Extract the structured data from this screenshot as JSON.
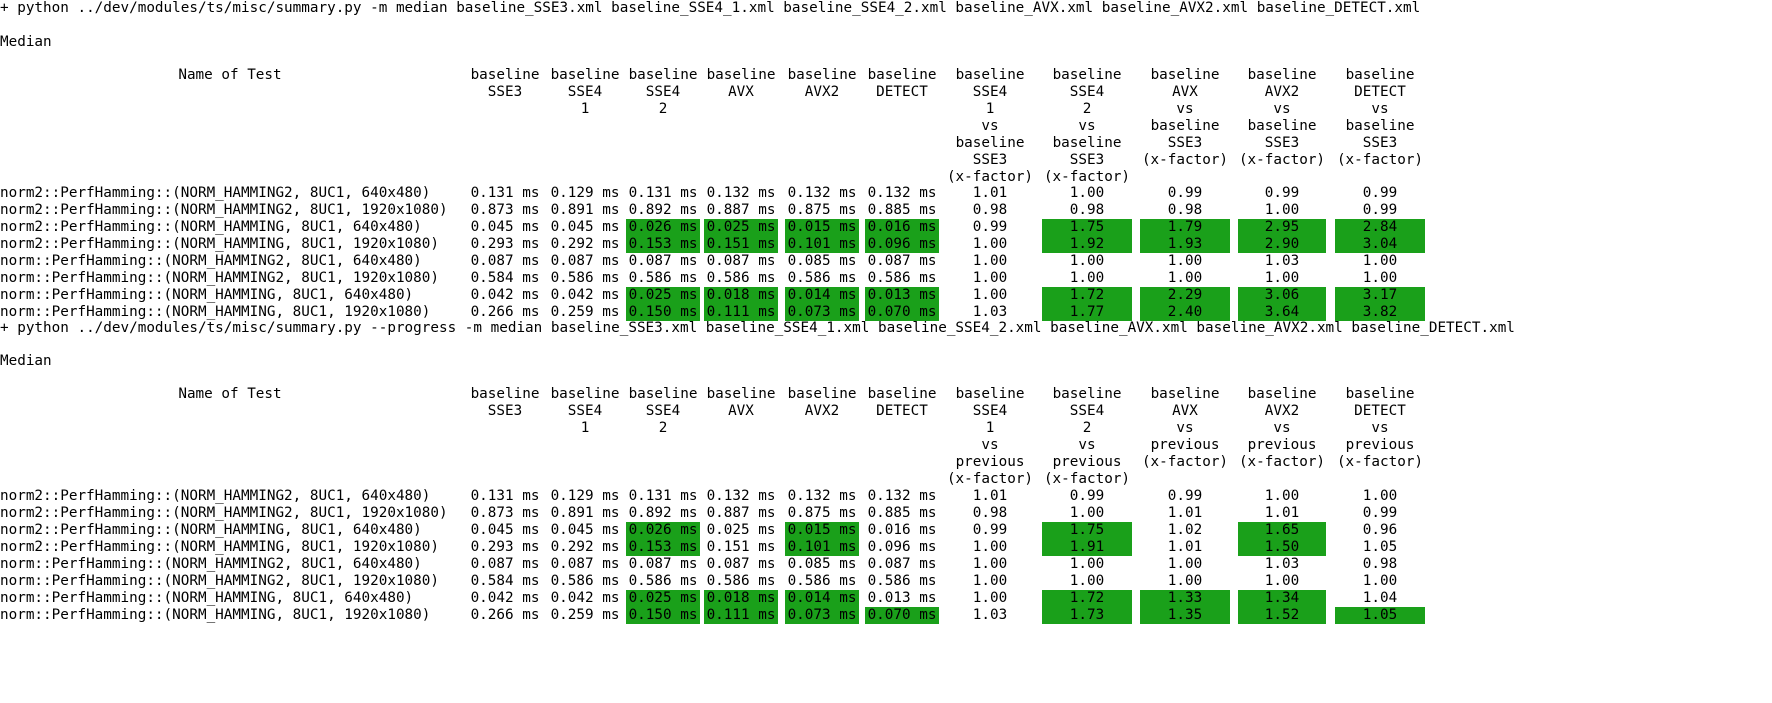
{
  "colors": {
    "highlight": "#1aa01a",
    "background": "#ffffff",
    "text": "#000000"
  },
  "run1": {
    "command": "+ python ../dev/modules/ts/misc/summary.py -m median baseline_SSE3.xml baseline_SSE4_1.xml baseline_SSE4_2.xml baseline_AVX.xml baseline_AVX2.xml baseline_DETECT.xml",
    "section": "Median",
    "name_header": "Name of Test",
    "headers": [
      [
        "baseline",
        "SSE3"
      ],
      [
        "baseline",
        "SSE4",
        "1"
      ],
      [
        "baseline",
        "SSE4",
        "2"
      ],
      [
        "baseline",
        "AVX"
      ],
      [
        "baseline",
        "AVX2"
      ],
      [
        "baseline",
        "DETECT"
      ],
      [
        "baseline",
        "SSE4",
        "1",
        "vs",
        "baseline",
        "SSE3",
        "(x-factor)"
      ],
      [
        "baseline",
        "SSE4",
        "2",
        "vs",
        "baseline",
        "SSE3",
        "(x-factor)"
      ],
      [
        "baseline",
        "AVX",
        "vs",
        "baseline",
        "SSE3",
        "(x-factor)"
      ],
      [
        "baseline",
        "AVX2",
        "vs",
        "baseline",
        "SSE3",
        "(x-factor)"
      ],
      [
        "baseline",
        "DETECT",
        "vs",
        "baseline",
        "SSE3",
        "(x-factor)"
      ]
    ],
    "rows": [
      {
        "name": "norm2::PerfHamming::(NORM_HAMMING2, 8UC1, 640x480)",
        "cells": [
          "0.131 ms",
          "0.129 ms",
          "0.131 ms",
          "0.132 ms",
          "0.132 ms",
          "0.132 ms",
          "1.01",
          "1.00",
          "0.99",
          "0.99",
          "0.99"
        ],
        "hl": []
      },
      {
        "name": "norm2::PerfHamming::(NORM_HAMMING2, 8UC1, 1920x1080)",
        "cells": [
          "0.873 ms",
          "0.891 ms",
          "0.892 ms",
          "0.887 ms",
          "0.875 ms",
          "0.885 ms",
          "0.98",
          "0.98",
          "0.98",
          "1.00",
          "0.99"
        ],
        "hl": []
      },
      {
        "name": "norm2::PerfHamming::(NORM_HAMMING, 8UC1, 640x480)",
        "cells": [
          "0.045 ms",
          "0.045 ms",
          "0.026 ms",
          "0.025 ms",
          "0.015 ms",
          "0.016 ms",
          "0.99",
          "1.75",
          "1.79",
          "2.95",
          "2.84"
        ],
        "hl": [
          2,
          3,
          4,
          5,
          7,
          8,
          9,
          10
        ]
      },
      {
        "name": "norm2::PerfHamming::(NORM_HAMMING, 8UC1, 1920x1080)",
        "cells": [
          "0.293 ms",
          "0.292 ms",
          "0.153 ms",
          "0.151 ms",
          "0.101 ms",
          "0.096 ms",
          "1.00",
          "1.92",
          "1.93",
          "2.90",
          "3.04"
        ],
        "hl": [
          2,
          3,
          4,
          5,
          7,
          8,
          9,
          10
        ]
      },
      {
        "name": "norm::PerfHamming::(NORM_HAMMING2, 8UC1, 640x480)",
        "cells": [
          "0.087 ms",
          "0.087 ms",
          "0.087 ms",
          "0.087 ms",
          "0.085 ms",
          "0.087 ms",
          "1.00",
          "1.00",
          "1.00",
          "1.03",
          "1.00"
        ],
        "hl": []
      },
      {
        "name": "norm::PerfHamming::(NORM_HAMMING2, 8UC1, 1920x1080)",
        "cells": [
          "0.584 ms",
          "0.586 ms",
          "0.586 ms",
          "0.586 ms",
          "0.586 ms",
          "0.586 ms",
          "1.00",
          "1.00",
          "1.00",
          "1.00",
          "1.00"
        ],
        "hl": []
      },
      {
        "name": "norm::PerfHamming::(NORM_HAMMING, 8UC1, 640x480)",
        "cells": [
          "0.042 ms",
          "0.042 ms",
          "0.025 ms",
          "0.018 ms",
          "0.014 ms",
          "0.013 ms",
          "1.00",
          "1.72",
          "2.29",
          "3.06",
          "3.17"
        ],
        "hl": [
          2,
          3,
          4,
          5,
          7,
          8,
          9,
          10
        ]
      },
      {
        "name": "norm::PerfHamming::(NORM_HAMMING, 8UC1, 1920x1080)",
        "cells": [
          "0.266 ms",
          "0.259 ms",
          "0.150 ms",
          "0.111 ms",
          "0.073 ms",
          "0.070 ms",
          "1.03",
          "1.77",
          "2.40",
          "3.64",
          "3.82"
        ],
        "hl": [
          2,
          3,
          4,
          5,
          7,
          8,
          9,
          10
        ]
      }
    ]
  },
  "run2": {
    "command": "+ python ../dev/modules/ts/misc/summary.py --progress -m median baseline_SSE3.xml baseline_SSE4_1.xml baseline_SSE4_2.xml baseline_AVX.xml baseline_AVX2.xml baseline_DETECT.xml",
    "section": "Median",
    "name_header": "Name of Test",
    "headers": [
      [
        "baseline",
        "SSE3"
      ],
      [
        "baseline",
        "SSE4",
        "1"
      ],
      [
        "baseline",
        "SSE4",
        "2"
      ],
      [
        "baseline",
        "AVX"
      ],
      [
        "baseline",
        "AVX2"
      ],
      [
        "baseline",
        "DETECT"
      ],
      [
        "baseline",
        "SSE4",
        "1",
        "vs",
        "previous",
        "(x-factor)"
      ],
      [
        "baseline",
        "SSE4",
        "2",
        "vs",
        "previous",
        "(x-factor)"
      ],
      [
        "baseline",
        "AVX",
        "vs",
        "previous",
        "(x-factor)"
      ],
      [
        "baseline",
        "AVX2",
        "vs",
        "previous",
        "(x-factor)"
      ],
      [
        "baseline",
        "DETECT",
        "vs",
        "previous",
        "(x-factor)"
      ]
    ],
    "rows": [
      {
        "name": "norm2::PerfHamming::(NORM_HAMMING2, 8UC1, 640x480)",
        "cells": [
          "0.131 ms",
          "0.129 ms",
          "0.131 ms",
          "0.132 ms",
          "0.132 ms",
          "0.132 ms",
          "1.01",
          "0.99",
          "0.99",
          "1.00",
          "1.00"
        ],
        "hl": []
      },
      {
        "name": "norm2::PerfHamming::(NORM_HAMMING2, 8UC1, 1920x1080)",
        "cells": [
          "0.873 ms",
          "0.891 ms",
          "0.892 ms",
          "0.887 ms",
          "0.875 ms",
          "0.885 ms",
          "0.98",
          "1.00",
          "1.01",
          "1.01",
          "0.99"
        ],
        "hl": []
      },
      {
        "name": "norm2::PerfHamming::(NORM_HAMMING, 8UC1, 640x480)",
        "cells": [
          "0.045 ms",
          "0.045 ms",
          "0.026 ms",
          "0.025 ms",
          "0.015 ms",
          "0.016 ms",
          "0.99",
          "1.75",
          "1.02",
          "1.65",
          "0.96"
        ],
        "hl": [
          2,
          4,
          7,
          9
        ]
      },
      {
        "name": "norm2::PerfHamming::(NORM_HAMMING, 8UC1, 1920x1080)",
        "cells": [
          "0.293 ms",
          "0.292 ms",
          "0.153 ms",
          "0.151 ms",
          "0.101 ms",
          "0.096 ms",
          "1.00",
          "1.91",
          "1.01",
          "1.50",
          "1.05"
        ],
        "hl": [
          2,
          4,
          7,
          9
        ]
      },
      {
        "name": "norm::PerfHamming::(NORM_HAMMING2, 8UC1, 640x480)",
        "cells": [
          "0.087 ms",
          "0.087 ms",
          "0.087 ms",
          "0.087 ms",
          "0.085 ms",
          "0.087 ms",
          "1.00",
          "1.00",
          "1.00",
          "1.03",
          "0.98"
        ],
        "hl": []
      },
      {
        "name": "norm::PerfHamming::(NORM_HAMMING2, 8UC1, 1920x1080)",
        "cells": [
          "0.584 ms",
          "0.586 ms",
          "0.586 ms",
          "0.586 ms",
          "0.586 ms",
          "0.586 ms",
          "1.00",
          "1.00",
          "1.00",
          "1.00",
          "1.00"
        ],
        "hl": []
      },
      {
        "name": "norm::PerfHamming::(NORM_HAMMING, 8UC1, 640x480)",
        "cells": [
          "0.042 ms",
          "0.042 ms",
          "0.025 ms",
          "0.018 ms",
          "0.014 ms",
          "0.013 ms",
          "1.00",
          "1.72",
          "1.33",
          "1.34",
          "1.04"
        ],
        "hl": [
          2,
          3,
          4,
          7,
          8,
          9
        ]
      },
      {
        "name": "norm::PerfHamming::(NORM_HAMMING, 8UC1, 1920x1080)",
        "cells": [
          "0.266 ms",
          "0.259 ms",
          "0.150 ms",
          "0.111 ms",
          "0.073 ms",
          "0.070 ms",
          "1.03",
          "1.73",
          "1.35",
          "1.52",
          "1.05"
        ],
        "hl": [
          2,
          3,
          4,
          5,
          7,
          8,
          9,
          10
        ]
      }
    ]
  }
}
